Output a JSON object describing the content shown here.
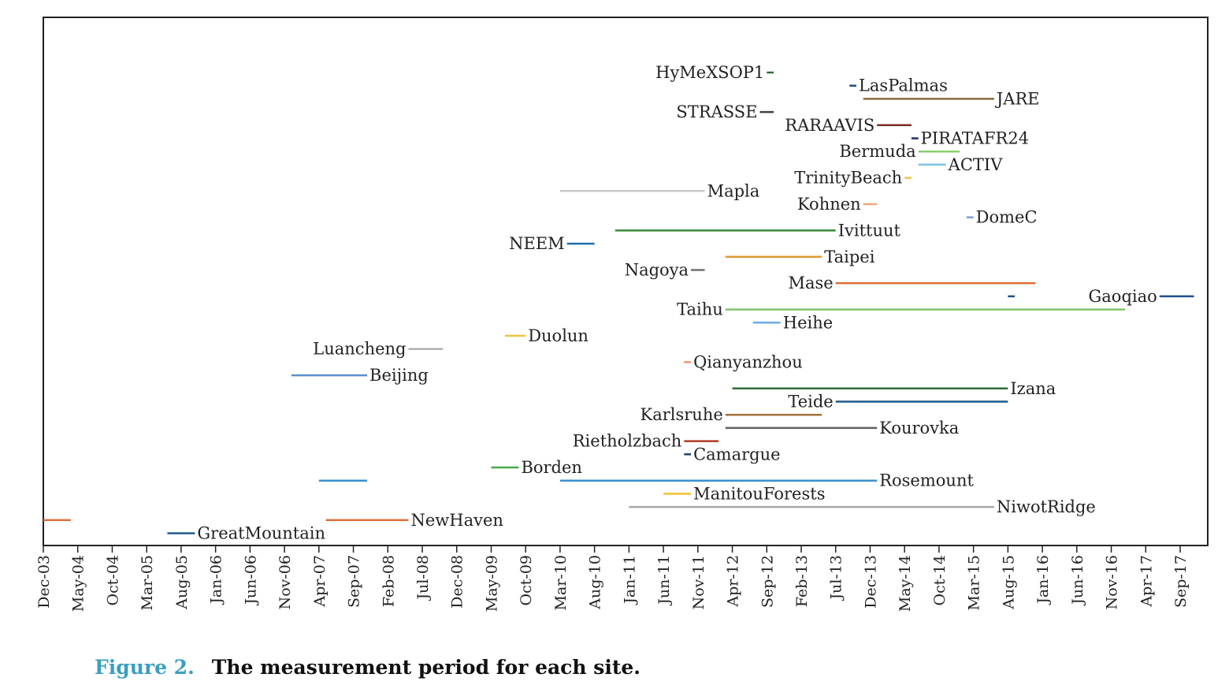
{
  "chart_data": {
    "type": "timeline",
    "title": "",
    "xlabel": "",
    "ylabel": "",
    "x_range": [
      "2003-12",
      "2018-01"
    ],
    "tick_labels": [
      "Dec-03",
      "May-04",
      "Oct-04",
      "Mar-05",
      "Aug-05",
      "Jan-06",
      "Jun-06",
      "Nov-06",
      "Apr-07",
      "Sep-07",
      "Feb-08",
      "Jul-08",
      "Dec-08",
      "May-09",
      "Oct-09",
      "Mar-10",
      "Aug-10",
      "Jan-11",
      "Jun-11",
      "Nov-11",
      "Apr-12",
      "Sep-12",
      "Feb-13",
      "Jul-13",
      "Dec-13",
      "May-14",
      "Oct-14",
      "Mar-15",
      "Aug-15",
      "Jan-16",
      "Jun-16",
      "Nov-16",
      "Apr-17",
      "Sep-17"
    ],
    "grid": false,
    "legend": "none",
    "sites": [
      {
        "name": "HyMeXSOP1",
        "start": "2012-09",
        "end": "2012-10",
        "color": "#2e6b3a",
        "row": 1,
        "label_side": "left"
      },
      {
        "name": "LasPalmas",
        "start": "2013-09",
        "end": "2013-10",
        "color": "#1f4e79",
        "row": 2,
        "label_side": "right"
      },
      {
        "name": "JARE",
        "start": "2013-11",
        "end": "2015-06",
        "color": "#8b6a3e",
        "row": 3,
        "label_side": "right"
      },
      {
        "name": "STRASSE",
        "start": "2012-08",
        "end": "2012-10",
        "color": "#404040",
        "row": 4,
        "label_side": "left"
      },
      {
        "name": "RARAAVIS",
        "start": "2014-01",
        "end": "2014-06",
        "color": "#7b2e1e",
        "row": 5,
        "label_side": "left"
      },
      {
        "name": "PIRATAFR24",
        "start": "2014-06",
        "end": "2014-07",
        "color": "#1f2f5a",
        "row": 6,
        "label_side": "right"
      },
      {
        "name": "Bermuda",
        "start": "2014-07",
        "end": "2015-01",
        "color": "#8ccf6e",
        "row": 7,
        "label_side": "left"
      },
      {
        "name": "ACTIV",
        "start": "2014-07",
        "end": "2014-11",
        "color": "#7ec3e6",
        "row": 8,
        "label_side": "right"
      },
      {
        "name": "TrinityBeach",
        "start": "2014-05",
        "end": "2014-06",
        "color": "#f2c14e",
        "row": 9,
        "label_side": "left"
      },
      {
        "name": "Mapla",
        "start": "2010-03",
        "end": "2011-12",
        "color": "#c8c8c8",
        "row": 10,
        "label_side": "right"
      },
      {
        "name": "Kohnen",
        "start": "2013-11",
        "end": "2014-01",
        "color": "#f0a878",
        "row": 11,
        "label_side": "left"
      },
      {
        "name": "DomeC",
        "start": "2015-02",
        "end": "2015-03",
        "color": "#7a9fd3",
        "row": 12,
        "label_side": "right"
      },
      {
        "name": "Ivittuut",
        "start": "2010-11",
        "end": "2013-07",
        "color": "#3a8a3a",
        "row": 13,
        "label_side": "right"
      },
      {
        "name": "NEEM",
        "start": "2010-04",
        "end": "2010-08",
        "color": "#1f6fae",
        "row": 14,
        "label_side": "left"
      },
      {
        "name": "Taipei",
        "start": "2012-03",
        "end": "2013-05",
        "color": "#e09a30",
        "row": 15,
        "label_side": "right"
      },
      {
        "name": "Nagoya",
        "start": "2011-10",
        "end": "2011-12",
        "color": "#707070",
        "row": 16,
        "label_side": "left"
      },
      {
        "name": "Mase",
        "start": "2013-07",
        "end": "2015-12",
        "color": "#e0703a",
        "row": 17,
        "label_side": "left"
      },
      {
        "name": "Gaoqiao",
        "start": "2017-06",
        "end": "2017-11",
        "color": "#1f4e8c",
        "row": 18,
        "label_side": "left"
      },
      {
        "name": "Gaoqiao",
        "start": "2015-08",
        "end": "2015-09",
        "color": "#1f4e8c",
        "row": 18,
        "label_side": "none"
      },
      {
        "name": "Taihu",
        "start": "2012-03",
        "end": "2017-01",
        "color": "#7dc36b",
        "row": 19,
        "label_side": "left"
      },
      {
        "name": "Heihe",
        "start": "2012-07",
        "end": "2012-11",
        "color": "#6aaee8",
        "row": 20,
        "label_side": "right"
      },
      {
        "name": "Duolun",
        "start": "2009-07",
        "end": "2009-10",
        "color": "#f5c242",
        "row": 21,
        "label_side": "right"
      },
      {
        "name": "Luancheng",
        "start": "2008-05",
        "end": "2008-10",
        "color": "#b0b0b0",
        "row": 22,
        "label_side": "left"
      },
      {
        "name": "Qianyanzhou",
        "start": "2011-09",
        "end": "2011-10",
        "color": "#f0956a",
        "row": 23,
        "label_side": "right"
      },
      {
        "name": "Beijing",
        "start": "2006-12",
        "end": "2007-11",
        "color": "#5b8fd1",
        "row": 24,
        "label_side": "right"
      },
      {
        "name": "Izana",
        "start": "2012-04",
        "end": "2015-08",
        "color": "#2e6b3a",
        "row": 25,
        "label_side": "right"
      },
      {
        "name": "Teide",
        "start": "2013-07",
        "end": "2015-08",
        "color": "#1f5a8c",
        "row": 26,
        "label_side": "left"
      },
      {
        "name": "Karlsruhe",
        "start": "2012-03",
        "end": "2013-05",
        "color": "#a0723c",
        "row": 27,
        "label_side": "left"
      },
      {
        "name": "Kourovka",
        "start": "2012-03",
        "end": "2014-01",
        "color": "#606060",
        "row": 28,
        "label_side": "right"
      },
      {
        "name": "Rietholzbach",
        "start": "2011-09",
        "end": "2012-02",
        "color": "#b03a22",
        "row": 29,
        "label_side": "left"
      },
      {
        "name": "Camargue",
        "start": "2011-09",
        "end": "2011-10",
        "color": "#1f3f6a",
        "row": 30,
        "label_side": "right"
      },
      {
        "name": "Borden",
        "start": "2009-05",
        "end": "2009-09",
        "color": "#4aa84a",
        "row": 31,
        "label_side": "right"
      },
      {
        "name": "",
        "start": "2007-04",
        "end": "2007-11",
        "color": "#3a8fd0",
        "row": 32,
        "label_side": "none"
      },
      {
        "name": "Rosemount",
        "start": "2010-03",
        "end": "2014-01",
        "color": "#3a8fd0",
        "row": 32,
        "label_side": "right"
      },
      {
        "name": "ManitouForests",
        "start": "2011-06",
        "end": "2011-10",
        "color": "#f0c030",
        "row": 33,
        "label_side": "right"
      },
      {
        "name": "NiwotRidge",
        "start": "2011-01",
        "end": "2015-06",
        "color": "#a8a8a8",
        "row": 34,
        "label_side": "right"
      },
      {
        "name": "",
        "start": "2003-12",
        "end": "2004-04",
        "color": "#e0703a",
        "row": 35,
        "label_side": "none"
      },
      {
        "name": "NewHaven",
        "start": "2007-05",
        "end": "2008-05",
        "color": "#e0703a",
        "row": 35,
        "label_side": "right"
      },
      {
        "name": "GreatMountain",
        "start": "2005-06",
        "end": "2005-10",
        "color": "#1f5a8c",
        "row": 36,
        "label_side": "right"
      }
    ]
  },
  "caption": {
    "number": "Figure 2.",
    "text": "The measurement period for each site."
  }
}
